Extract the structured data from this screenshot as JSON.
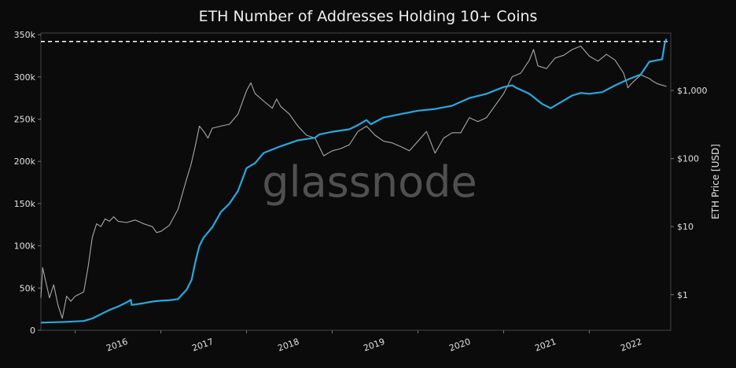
{
  "chart_data": {
    "type": "line",
    "title": "ETH Number of Addresses Holding 10+ Coins",
    "watermark": "glassnode",
    "x_tick_labels": [
      "2016",
      "2017",
      "2018",
      "2019",
      "2020",
      "2021",
      "2022"
    ],
    "xlim": [
      2015.6,
      2022.95
    ],
    "y_left": {
      "ticks": [
        0,
        50000,
        100000,
        150000,
        200000,
        250000,
        300000,
        350000
      ],
      "tick_labels": [
        "0",
        "50k",
        "100k",
        "150k",
        "200k",
        "250k",
        "300k",
        "350k"
      ],
      "ylim": [
        0,
        352000
      ]
    },
    "y_right": {
      "label": "ETH Price [USD]",
      "scale": "log",
      "ticks": [
        1,
        10,
        100,
        1000
      ],
      "tick_labels": [
        "$1",
        "$10",
        "$100",
        "$1,000"
      ],
      "ylim": [
        0.3,
        7000
      ]
    },
    "reference_line": {
      "value": 342000,
      "style": "dashed",
      "color": "#ffffff"
    },
    "series": [
      {
        "axis": "left",
        "color": "#29a8e0",
        "points": [
          [
            2015.6,
            9000
          ],
          [
            2015.9,
            10000
          ],
          [
            2016.1,
            11000
          ],
          [
            2016.2,
            14000
          ],
          [
            2016.3,
            19000
          ],
          [
            2016.4,
            24000
          ],
          [
            2016.5,
            28000
          ],
          [
            2016.6,
            33000
          ],
          [
            2016.65,
            36000
          ],
          [
            2016.66,
            30000
          ],
          [
            2016.8,
            32000
          ],
          [
            2016.9,
            34000
          ],
          [
            2017.0,
            35000
          ],
          [
            2017.1,
            35500
          ],
          [
            2017.2,
            37000
          ],
          [
            2017.3,
            48000
          ],
          [
            2017.36,
            60000
          ],
          [
            2017.4,
            80000
          ],
          [
            2017.45,
            100000
          ],
          [
            2017.5,
            110000
          ],
          [
            2017.6,
            122000
          ],
          [
            2017.7,
            140000
          ],
          [
            2017.8,
            150000
          ],
          [
            2017.9,
            165000
          ],
          [
            2018.0,
            192000
          ],
          [
            2018.1,
            198000
          ],
          [
            2018.2,
            210000
          ],
          [
            2018.4,
            218000
          ],
          [
            2018.6,
            225000
          ],
          [
            2018.8,
            228000
          ],
          [
            2018.85,
            232000
          ],
          [
            2019.0,
            235000
          ],
          [
            2019.2,
            238000
          ],
          [
            2019.3,
            243000
          ],
          [
            2019.4,
            249000
          ],
          [
            2019.45,
            244000
          ],
          [
            2019.6,
            252000
          ],
          [
            2019.8,
            256000
          ],
          [
            2020.0,
            260000
          ],
          [
            2020.2,
            262000
          ],
          [
            2020.4,
            266000
          ],
          [
            2020.6,
            275000
          ],
          [
            2020.8,
            280000
          ],
          [
            2021.0,
            288000
          ],
          [
            2021.1,
            290000
          ],
          [
            2021.15,
            287000
          ],
          [
            2021.3,
            280000
          ],
          [
            2021.45,
            268000
          ],
          [
            2021.55,
            263000
          ],
          [
            2021.7,
            272000
          ],
          [
            2021.8,
            278000
          ],
          [
            2021.9,
            281000
          ],
          [
            2022.0,
            280000
          ],
          [
            2022.15,
            282000
          ],
          [
            2022.3,
            290000
          ],
          [
            2022.45,
            297000
          ],
          [
            2022.6,
            303000
          ],
          [
            2022.7,
            318000
          ],
          [
            2022.8,
            320000
          ],
          [
            2022.85,
            321000
          ],
          [
            2022.88,
            340000
          ],
          [
            2022.9,
            345000
          ]
        ]
      },
      {
        "axis": "right",
        "color": "#a8a8a8",
        "points": [
          [
            2015.6,
            0.9
          ],
          [
            2015.62,
            2.5
          ],
          [
            2015.7,
            0.9
          ],
          [
            2015.75,
            1.4
          ],
          [
            2015.8,
            0.7
          ],
          [
            2015.85,
            0.45
          ],
          [
            2015.9,
            0.95
          ],
          [
            2015.95,
            0.8
          ],
          [
            2016.0,
            0.95
          ],
          [
            2016.1,
            1.1
          ],
          [
            2016.15,
            2.5
          ],
          [
            2016.2,
            7.0
          ],
          [
            2016.25,
            11.0
          ],
          [
            2016.3,
            10.0
          ],
          [
            2016.35,
            13.0
          ],
          [
            2016.4,
            12.0
          ],
          [
            2016.45,
            14.0
          ],
          [
            2016.5,
            12.0
          ],
          [
            2016.6,
            11.5
          ],
          [
            2016.7,
            12.5
          ],
          [
            2016.8,
            11.0
          ],
          [
            2016.9,
            10.0
          ],
          [
            2016.95,
            8.2
          ],
          [
            2017.0,
            8.5
          ],
          [
            2017.1,
            10.5
          ],
          [
            2017.2,
            18.0
          ],
          [
            2017.3,
            50.0
          ],
          [
            2017.35,
            80.0
          ],
          [
            2017.4,
            150.0
          ],
          [
            2017.45,
            300.0
          ],
          [
            2017.5,
            250.0
          ],
          [
            2017.55,
            200.0
          ],
          [
            2017.6,
            280.0
          ],
          [
            2017.7,
            300.0
          ],
          [
            2017.8,
            320.0
          ],
          [
            2017.9,
            450.0
          ],
          [
            2018.0,
            1000.0
          ],
          [
            2018.05,
            1300.0
          ],
          [
            2018.1,
            900.0
          ],
          [
            2018.2,
            700.0
          ],
          [
            2018.3,
            550.0
          ],
          [
            2018.35,
            750.0
          ],
          [
            2018.4,
            580.0
          ],
          [
            2018.5,
            450.0
          ],
          [
            2018.6,
            300.0
          ],
          [
            2018.7,
            220.0
          ],
          [
            2018.8,
            200.0
          ],
          [
            2018.9,
            110.0
          ],
          [
            2019.0,
            130.0
          ],
          [
            2019.1,
            140.0
          ],
          [
            2019.2,
            160.0
          ],
          [
            2019.3,
            250.0
          ],
          [
            2019.4,
            300.0
          ],
          [
            2019.5,
            220.0
          ],
          [
            2019.6,
            180.0
          ],
          [
            2019.7,
            170.0
          ],
          [
            2019.8,
            150.0
          ],
          [
            2019.9,
            130.0
          ],
          [
            2020.0,
            180.0
          ],
          [
            2020.1,
            250.0
          ],
          [
            2020.2,
            120.0
          ],
          [
            2020.3,
            200.0
          ],
          [
            2020.4,
            240.0
          ],
          [
            2020.5,
            240.0
          ],
          [
            2020.6,
            400.0
          ],
          [
            2020.7,
            350.0
          ],
          [
            2020.8,
            400.0
          ],
          [
            2020.9,
            600.0
          ],
          [
            2021.0,
            900.0
          ],
          [
            2021.1,
            1600.0
          ],
          [
            2021.2,
            1800.0
          ],
          [
            2021.3,
            2800.0
          ],
          [
            2021.35,
            4000.0
          ],
          [
            2021.4,
            2300.0
          ],
          [
            2021.5,
            2100.0
          ],
          [
            2021.6,
            3000.0
          ],
          [
            2021.7,
            3300.0
          ],
          [
            2021.8,
            4000.0
          ],
          [
            2021.9,
            4500.0
          ],
          [
            2022.0,
            3200.0
          ],
          [
            2022.1,
            2700.0
          ],
          [
            2022.2,
            3400.0
          ],
          [
            2022.3,
            2800.0
          ],
          [
            2022.4,
            1800.0
          ],
          [
            2022.45,
            1100.0
          ],
          [
            2022.5,
            1300.0
          ],
          [
            2022.6,
            1700.0
          ],
          [
            2022.7,
            1500.0
          ],
          [
            2022.75,
            1350.0
          ],
          [
            2022.8,
            1250.0
          ],
          [
            2022.85,
            1200.0
          ],
          [
            2022.9,
            1150.0
          ]
        ]
      }
    ]
  }
}
